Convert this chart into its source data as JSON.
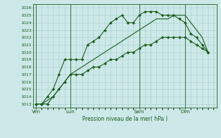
{
  "title": "Pression niveau de la mer( hPa )",
  "background_color": "#cce8e8",
  "grid_color": "#a8cccc",
  "line_color": "#1a5c1a",
  "ylim": [
    1012.5,
    1026.5
  ],
  "yticks": [
    1013,
    1014,
    1015,
    1016,
    1017,
    1018,
    1019,
    1020,
    1021,
    1022,
    1023,
    1024,
    1025,
    1026
  ],
  "day_labels": [
    "Ven",
    "Lun",
    "Sam",
    "Dim"
  ],
  "day_positions": [
    0,
    6,
    18,
    26
  ],
  "vline_positions": [
    0,
    6,
    18,
    26
  ],
  "xlim": [
    -0.5,
    31.5
  ],
  "series1_x": [
    0,
    1,
    2,
    3,
    4,
    5,
    6,
    7,
    8,
    9,
    10,
    11,
    12,
    13,
    14,
    15,
    16,
    17,
    18,
    19,
    20,
    21,
    22,
    23,
    24,
    25,
    26,
    27,
    28,
    29,
    30
  ],
  "series1_y": [
    1013,
    1013,
    1014,
    1015,
    1017,
    1019,
    1019,
    1019,
    1019,
    1021,
    1021.5,
    1022,
    1023,
    1024,
    1024.5,
    1025,
    1024,
    1024,
    1025,
    1025.5,
    1025.5,
    1025.5,
    1025,
    1025,
    1025,
    1024.5,
    1024,
    1022.5,
    1022,
    1021,
    1020
  ],
  "series2_x": [
    0,
    1,
    2,
    3,
    4,
    5,
    6,
    7,
    8,
    9,
    10,
    11,
    12,
    13,
    14,
    15,
    16,
    17,
    18,
    19,
    20,
    21,
    22,
    23,
    24,
    25,
    26,
    27,
    28,
    29,
    30
  ],
  "series2_y": [
    1013,
    1013,
    1013,
    1014,
    1015,
    1016,
    1017,
    1017,
    1017,
    1017.5,
    1018,
    1018,
    1018.5,
    1019,
    1019,
    1019.5,
    1020,
    1020,
    1020.5,
    1021,
    1021,
    1021.5,
    1022,
    1022,
    1022,
    1022,
    1022,
    1021.5,
    1021,
    1020.5,
    1020
  ],
  "series3_x": [
    0,
    1,
    2,
    3,
    4,
    5,
    6,
    7,
    8,
    9,
    10,
    11,
    12,
    13,
    14,
    15,
    16,
    17,
    18,
    19,
    20,
    21,
    22,
    23,
    24,
    25,
    26,
    27,
    28,
    29,
    30
  ],
  "series3_y": [
    1013,
    1013,
    1013.5,
    1014,
    1015,
    1016,
    1017,
    1017.5,
    1018,
    1018.5,
    1019,
    1019.5,
    1020,
    1020.5,
    1021,
    1021.5,
    1022,
    1022.5,
    1023,
    1023.5,
    1024,
    1024.5,
    1024.5,
    1024.5,
    1025,
    1025,
    1025,
    1024,
    1023,
    1022,
    1020
  ]
}
